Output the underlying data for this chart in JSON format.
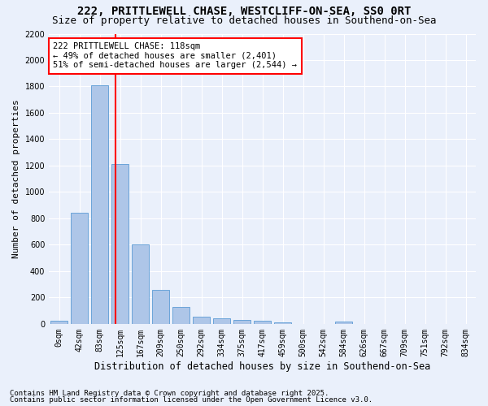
{
  "title": "222, PRITTLEWELL CHASE, WESTCLIFF-ON-SEA, SS0 0RT",
  "subtitle": "Size of property relative to detached houses in Southend-on-Sea",
  "xlabel": "Distribution of detached houses by size in Southend-on-Sea",
  "ylabel": "Number of detached properties",
  "footnote1": "Contains HM Land Registry data © Crown copyright and database right 2025.",
  "footnote2": "Contains public sector information licensed under the Open Government Licence v3.0.",
  "bar_labels": [
    "0sqm",
    "42sqm",
    "83sqm",
    "125sqm",
    "167sqm",
    "209sqm",
    "250sqm",
    "292sqm",
    "334sqm",
    "375sqm",
    "417sqm",
    "459sqm",
    "500sqm",
    "542sqm",
    "584sqm",
    "626sqm",
    "667sqm",
    "709sqm",
    "751sqm",
    "792sqm",
    "834sqm"
  ],
  "bar_values": [
    25,
    845,
    1810,
    1210,
    600,
    255,
    130,
    55,
    45,
    32,
    22,
    10,
    0,
    0,
    20,
    0,
    0,
    0,
    0,
    0,
    0
  ],
  "bar_color": "#aec6e8",
  "bar_edge_color": "#5b9bd5",
  "vline_color": "red",
  "vline_x": 2.78,
  "annotation_line1": "222 PRITTLEWELL CHASE: 118sqm",
  "annotation_line2": "← 49% of detached houses are smaller (2,401)",
  "annotation_line3": "51% of semi-detached houses are larger (2,544) →",
  "annotation_box_color": "white",
  "annotation_box_edgecolor": "red",
  "ylim": [
    0,
    2200
  ],
  "yticks": [
    0,
    200,
    400,
    600,
    800,
    1000,
    1200,
    1400,
    1600,
    1800,
    2000,
    2200
  ],
  "bg_color": "#eaf0fb",
  "grid_color": "white",
  "title_fontsize": 10,
  "subtitle_fontsize": 9,
  "xlabel_fontsize": 8.5,
  "ylabel_fontsize": 8,
  "tick_fontsize": 7,
  "annot_fontsize": 7.5,
  "footnote_fontsize": 6.5
}
